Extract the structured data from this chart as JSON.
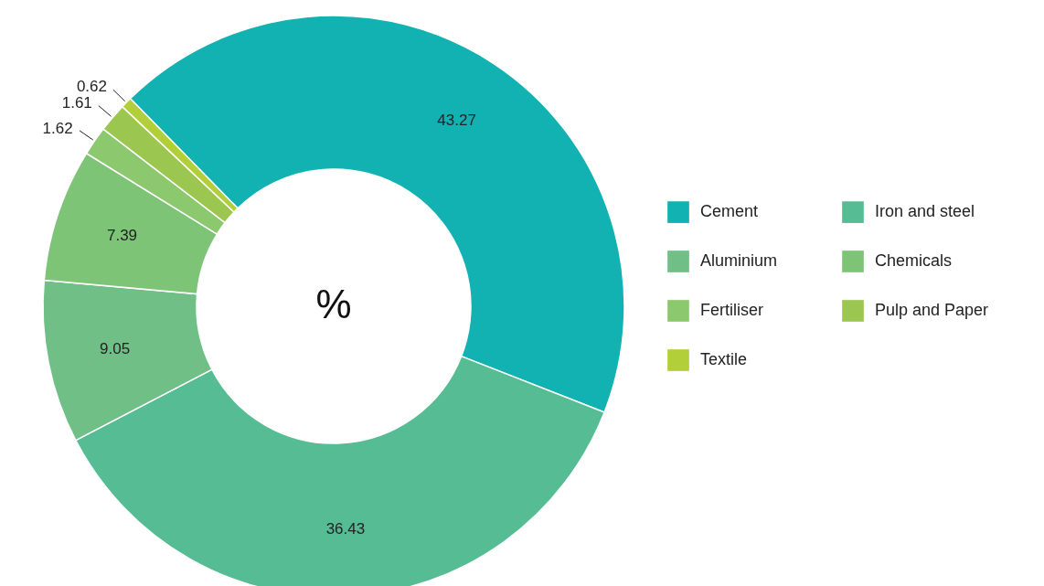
{
  "chart_data": {
    "type": "donut",
    "categories": [
      "Cement",
      "Iron and steel",
      "Aluminium",
      "Chemicals",
      "Fertiliser",
      "Pulp and Paper",
      "Textile"
    ],
    "values": [
      43.27,
      36.43,
      9.05,
      7.39,
      1.62,
      1.61,
      0.62
    ],
    "colors": [
      "#12b2b2",
      "#56bc93",
      "#6fbf86",
      "#7dc477",
      "#8cc86e",
      "#9bc650",
      "#b2cf3a"
    ],
    "data_labels": true,
    "legend": "right",
    "annotations": [
      "%"
    ]
  }
}
